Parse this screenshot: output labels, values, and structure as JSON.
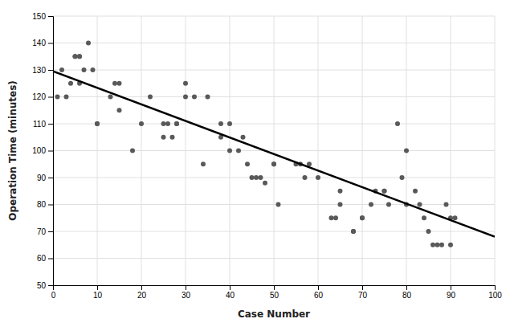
{
  "chart_data": {
    "type": "scatter",
    "xlabel": "Case Number",
    "ylabel": "Operation Time (minutes)",
    "xlim": [
      0,
      100
    ],
    "ylim": [
      50,
      150
    ],
    "xticks": [
      0,
      10,
      20,
      30,
      40,
      50,
      60,
      70,
      80,
      90,
      100
    ],
    "yticks": [
      50,
      60,
      70,
      80,
      90,
      100,
      110,
      120,
      130,
      140,
      150
    ],
    "grid": true,
    "series": [
      {
        "type": "scatter",
        "color": "#595959",
        "x": [
          1,
          2,
          3,
          4,
          5,
          5,
          6,
          6,
          6,
          7,
          8,
          9,
          10,
          10,
          13,
          14,
          15,
          15,
          18,
          20,
          22,
          25,
          25,
          26,
          27,
          28,
          28,
          30,
          30,
          32,
          34,
          35,
          38,
          38,
          40,
          40,
          42,
          43,
          44,
          45,
          46,
          47,
          48,
          50,
          50,
          51,
          55,
          56,
          57,
          58,
          60,
          63,
          64,
          65,
          65,
          68,
          68,
          70,
          70,
          72,
          73,
          75,
          75,
          76,
          78,
          79,
          80,
          80,
          82,
          83,
          84,
          85,
          86,
          87,
          88,
          89,
          90,
          90,
          91
        ],
        "values": [
          120,
          130,
          120,
          125,
          135,
          135,
          135,
          135,
          125,
          130,
          140,
          130,
          110,
          110,
          120,
          125,
          125,
          115,
          100,
          110,
          120,
          110,
          105,
          110,
          105,
          110,
          110,
          125,
          120,
          120,
          95,
          120,
          105,
          110,
          100,
          110,
          100,
          105,
          95,
          90,
          90,
          90,
          88,
          95,
          95,
          80,
          95,
          95,
          90,
          95,
          90,
          75,
          75,
          80,
          85,
          70,
          70,
          75,
          75,
          80,
          85,
          85,
          85,
          80,
          110,
          90,
          100,
          80,
          85,
          80,
          75,
          70,
          65,
          65,
          65,
          80,
          75,
          65,
          75
        ]
      },
      {
        "type": "line",
        "color": "#000000",
        "x": [
          0,
          100
        ],
        "values": [
          129.5,
          68.0
        ]
      }
    ]
  }
}
